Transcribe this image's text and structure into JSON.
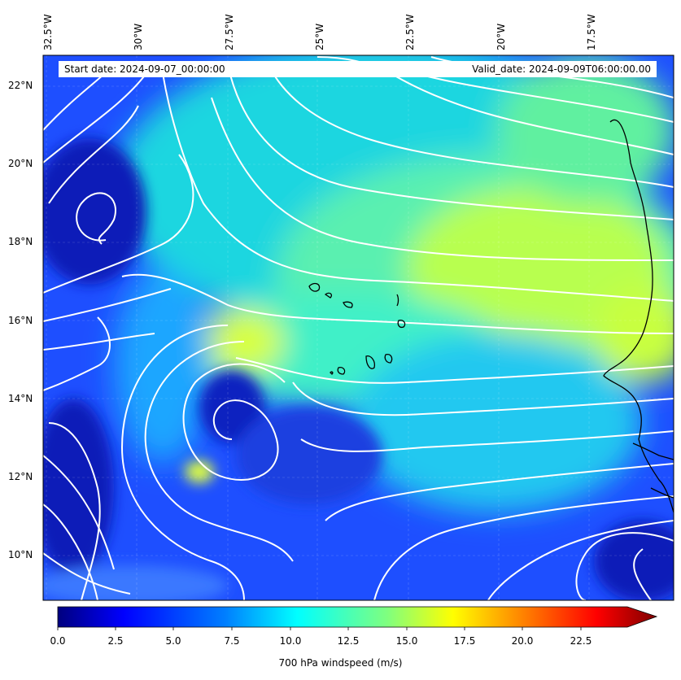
{
  "header": {
    "start_date": "Start date: 2024-09-07_00:00:00",
    "valid_date": "Valid_date: 2024-09-09T06:00:00.00"
  },
  "axes": {
    "lon_labels": [
      "32.5°W",
      "30°W",
      "27.5°W",
      "25°W",
      "22.5°W",
      "20°W",
      "17.5°W"
    ],
    "lat_labels": [
      "22°N",
      "20°N",
      "18°N",
      "16°N",
      "14°N",
      "12°N",
      "10°N"
    ]
  },
  "colorbar": {
    "label": "700 hPa windspeed (m/s)",
    "ticks": [
      "0.0",
      "2.5",
      "5.0",
      "7.5",
      "10.0",
      "12.5",
      "15.0",
      "17.5",
      "20.0",
      "22.5"
    ],
    "colors": [
      "#00007f",
      "#0000ff",
      "#007fff",
      "#00ffff",
      "#7fff7f",
      "#ffff00",
      "#ff7f00",
      "#ff0000",
      "#7f0000"
    ]
  },
  "map": {
    "field": "700 hPa windspeed",
    "overlay": "white streamlines",
    "coastline_color": "#000000",
    "streamline_color": "#ffffff"
  }
}
